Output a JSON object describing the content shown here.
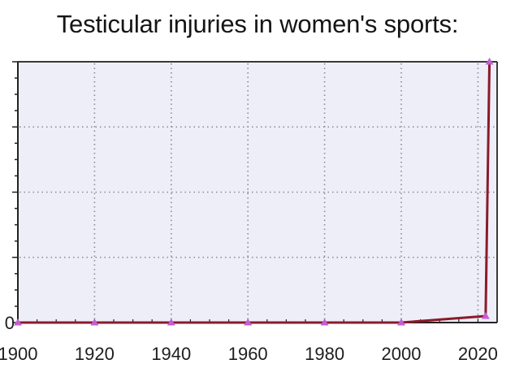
{
  "chart_data": {
    "type": "line",
    "title": "Testicular injuries in women's sports:",
    "xlabel": "",
    "ylabel": "",
    "x": [
      1900,
      1920,
      1940,
      1960,
      1980,
      2000,
      2022,
      2023
    ],
    "series": [
      {
        "values": [
          0,
          0,
          0,
          0,
          0,
          0,
          1,
          40
        ]
      }
    ],
    "x_ticks": [
      "1900",
      "1920",
      "1940",
      "1960",
      "1980",
      "2000",
      "2020"
    ],
    "y_ticks": [
      "0"
    ],
    "xlim": [
      1900,
      2025
    ],
    "ylim": [
      0,
      40
    ],
    "grid": true,
    "colors": {
      "line": "#8b1a2b",
      "marker": "#c25fd6",
      "plot_bg": "#eeeef8",
      "grid": "#8a8a8a"
    }
  }
}
